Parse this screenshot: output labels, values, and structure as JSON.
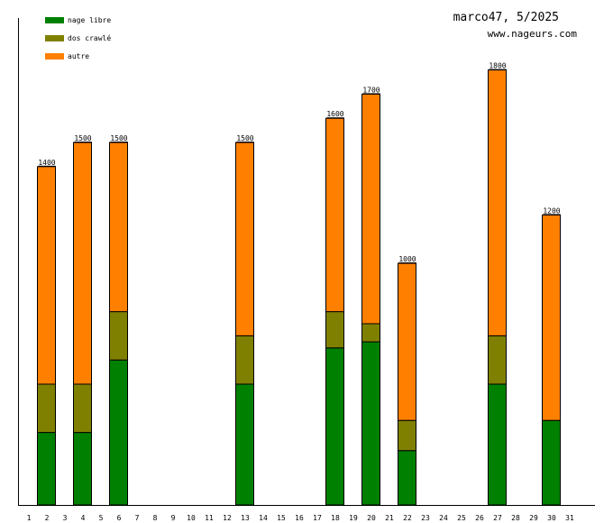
{
  "chart_data": {
    "type": "bar",
    "stacked": true,
    "title": "marco47, 5/2025",
    "subtitle": "www.nageurs.com",
    "xlabel": "",
    "ylabel": "",
    "ylim": [
      0,
      2000
    ],
    "legend_position": "top-left",
    "categories": [
      "1",
      "2",
      "3",
      "4",
      "5",
      "6",
      "7",
      "8",
      "9",
      "10",
      "11",
      "12",
      "13",
      "14",
      "15",
      "16",
      "17",
      "18",
      "19",
      "20",
      "21",
      "22",
      "23",
      "24",
      "25",
      "26",
      "27",
      "28",
      "29",
      "30",
      "31"
    ],
    "series": [
      {
        "name": "nage libre",
        "color": "#008000",
        "values": [
          0,
          300,
          0,
          300,
          0,
          600,
          0,
          0,
          0,
          0,
          0,
          0,
          500,
          0,
          0,
          0,
          0,
          650,
          0,
          675,
          0,
          225,
          0,
          0,
          0,
          0,
          500,
          0,
          0,
          350,
          0
        ]
      },
      {
        "name": "dos crawlé",
        "color": "#808000",
        "values": [
          0,
          200,
          0,
          200,
          0,
          200,
          0,
          0,
          0,
          0,
          0,
          0,
          200,
          0,
          0,
          0,
          0,
          150,
          0,
          75,
          0,
          125,
          0,
          0,
          0,
          0,
          200,
          0,
          0,
          0,
          0
        ]
      },
      {
        "name": "autre",
        "color": "#ff8000",
        "values": [
          0,
          900,
          0,
          1000,
          0,
          700,
          0,
          0,
          0,
          0,
          0,
          0,
          800,
          0,
          0,
          0,
          0,
          800,
          0,
          950,
          0,
          650,
          0,
          0,
          0,
          0,
          1100,
          0,
          0,
          850,
          0
        ]
      }
    ],
    "totals": [
      "",
      "1400",
      "",
      "1500",
      "",
      "1500",
      "",
      "",
      "",
      "",
      "",
      "",
      "1500",
      "",
      "",
      "",
      "",
      "1600",
      "",
      "1700",
      "",
      "1000",
      "",
      "",
      "",
      "",
      "1800",
      "",
      "",
      "1200",
      ""
    ]
  }
}
